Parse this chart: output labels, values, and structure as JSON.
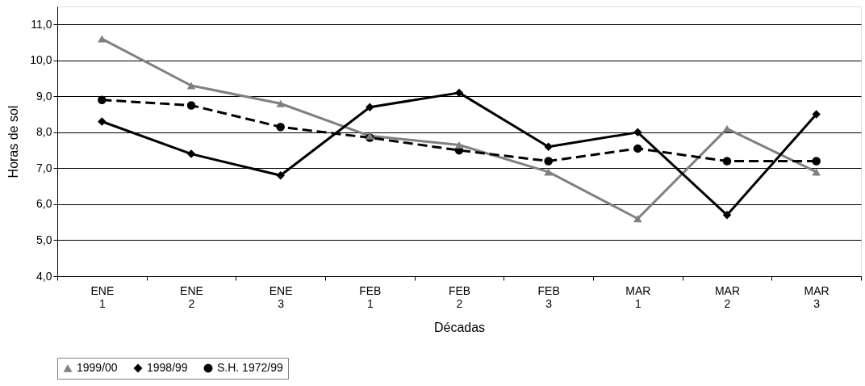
{
  "chart_data": {
    "type": "line",
    "xlabel": "Décadas",
    "ylabel": "Horas de sol",
    "categories": [
      "ENE 1",
      "ENE 2",
      "ENE 3",
      "FEB 1",
      "FEB 2",
      "FEB 3",
      "MAR 1",
      "MAR 2",
      "MAR 3"
    ],
    "series": [
      {
        "name": "1999/00",
        "color": "#808080",
        "marker": "triangle",
        "line_style": "solid",
        "values": [
          10.6,
          9.3,
          8.8,
          7.9,
          7.65,
          6.9,
          5.6,
          8.1,
          6.9
        ]
      },
      {
        "name": "1998/99",
        "color": "#000000",
        "marker": "diamond",
        "line_style": "solid",
        "values": [
          8.3,
          7.4,
          6.8,
          8.7,
          9.1,
          7.6,
          8.0,
          5.7,
          8.5
        ]
      },
      {
        "name": "S.H. 1972/99",
        "color": "#000000",
        "marker": "circle",
        "line_style": "dashed",
        "values": [
          8.9,
          8.75,
          8.15,
          7.85,
          7.5,
          7.2,
          7.55,
          7.2,
          7.2
        ]
      }
    ],
    "ylim": [
      4,
      11.5
    ],
    "yticks": [
      {
        "value": 4,
        "label": "4,0"
      },
      {
        "value": 5,
        "label": "5,0"
      },
      {
        "value": 6,
        "label": "6,0"
      },
      {
        "value": 7,
        "label": "7,0"
      },
      {
        "value": 8,
        "label": "8,0"
      },
      {
        "value": 9,
        "label": "9,0"
      },
      {
        "value": 10,
        "label": "10,0"
      },
      {
        "value": 11,
        "label": "11,0"
      }
    ],
    "grid": "y",
    "legend": "bottom"
  }
}
